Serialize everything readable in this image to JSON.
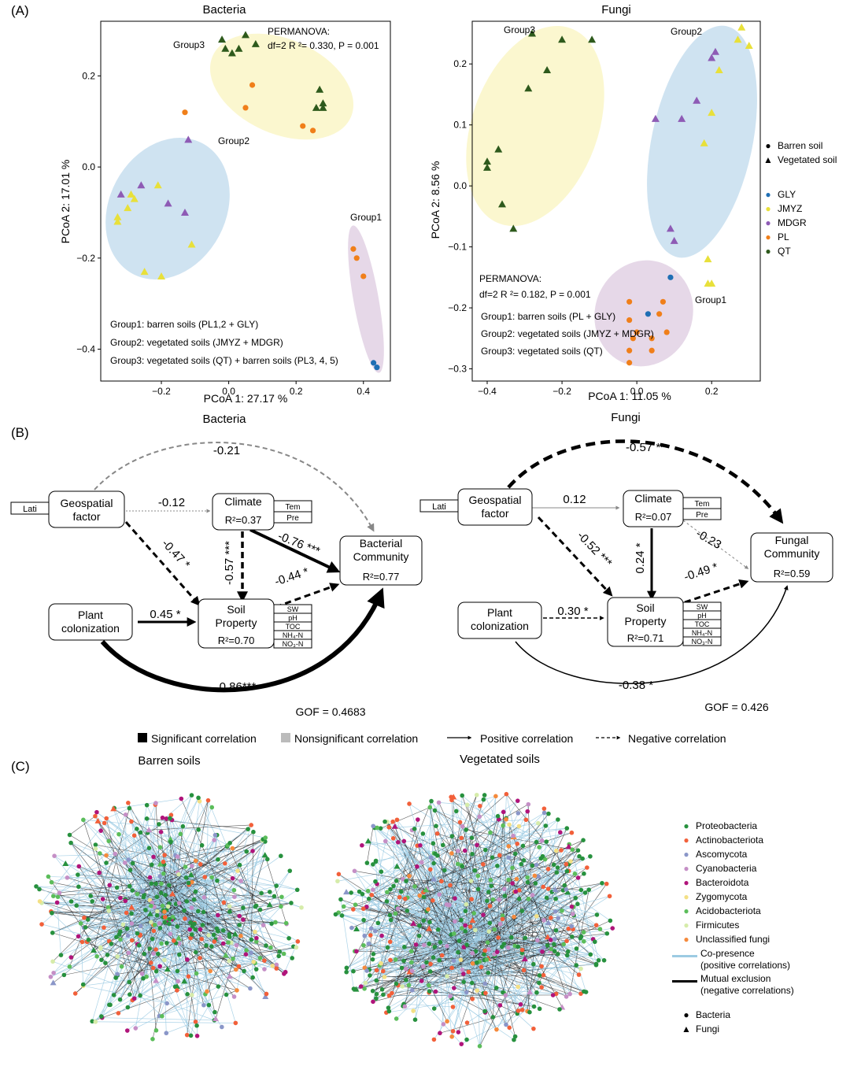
{
  "panel_a": {
    "label": "(A)",
    "bacteria": {
      "title": "Bacteria",
      "xlabel": "PCoA 1: 27.17 %",
      "ylabel": "PCoA 2: 17.01 %",
      "xticks": [
        "−0.2",
        "0.0",
        "0.2",
        "0.4"
      ],
      "yticks": [
        "0.2",
        "0.0",
        "−0.2",
        "−0.4"
      ],
      "permanova_title": "PERMANOVA:",
      "permanova_stats": "df=2 R ²= 0.330,  P = 0.001",
      "group_labels": [
        "Group1",
        "Group2",
        "Group3"
      ],
      "group_notes": [
        "Group1: barren soils (PL1,2 + GLY)",
        "Group2: vegetated soils (JMYZ + MDGR)",
        "Group3: vegetated soils (QT) + barren soils (PL3, 4, 5)"
      ]
    },
    "fungi": {
      "title": "Fungi",
      "xlabel": "PCoA 1: 11.05 %",
      "ylabel": "PCoA 2: 8.56 %",
      "xticks": [
        "−0.4",
        "−0.2",
        "0.0",
        "0.2"
      ],
      "yticks": [
        "0.2",
        "0.1",
        "0.0",
        "−0.1",
        "−0.2",
        "−0.3"
      ],
      "permanova_title": "PERMANOVA:",
      "permanova_stats": "df=2 R ²= 0.182,   P = 0.001",
      "group_labels": [
        "Group1",
        "Group2",
        "Group3"
      ],
      "group_notes": [
        "Group1: barren soils (PL + GLY)",
        "Group2: vegetated soils (JMYZ + MDGR)",
        "Group3: vegetated soils (QT)"
      ]
    },
    "shape_legend": [
      "Barren soil",
      "Vegetated soil"
    ],
    "site_legend": [
      {
        "name": "GLY",
        "color": "#1f6fb4"
      },
      {
        "name": "JMYZ",
        "color": "#e8e03a"
      },
      {
        "name": "MDGR",
        "color": "#8e5bb5"
      },
      {
        "name": "PL",
        "color": "#f07f1a"
      },
      {
        "name": "QT",
        "color": "#2e5a1c"
      }
    ]
  },
  "panel_b": {
    "label": "(B)",
    "bacteria": {
      "title": "Bacteria",
      "nodes": {
        "geo": "Geospatial\nfactor",
        "climate": "Climate",
        "climate_r2": "R²=0.37",
        "comm": "Bacterial\nCommunity",
        "comm_r2": "R²=0.77",
        "plant": "Plant\ncolonization",
        "soil": "Soil\nProperty",
        "soil_r2": "R²=0.70"
      },
      "coefs": [
        "-0.21",
        "-0.12",
        "-0.47 *",
        "-0.57 ***",
        "-0.76 ***",
        "-0.44 *",
        "0.45 *",
        "0.86***"
      ],
      "gof": "GOF = 0.4683"
    },
    "fungi": {
      "title": "Fungi",
      "nodes": {
        "geo": "Geospatial\nfactor",
        "climate": "Climate",
        "climate_r2": "R²=0.07",
        "comm": "Fungal\nCommunity",
        "comm_r2": "R²=0.59",
        "plant": "Plant\ncolonization",
        "soil": "Soil\nProperty",
        "soil_r2": "R²=0.71"
      },
      "coefs": [
        "-0.57 **",
        "0.12",
        "-0.52 ***",
        "0.24 *",
        "-0.23",
        "-0.49 *",
        "0.30 *",
        "-0.38 *"
      ],
      "gof": "GOF = 0.426"
    },
    "lati": "Lati",
    "climate_vars": [
      "Tem",
      "Pre"
    ],
    "soil_vars": [
      "SW",
      "pH",
      "TOC",
      "NH₄-N",
      "NO₃-N"
    ],
    "legend": [
      "Significant correlation",
      "Nonsignificant correlation",
      "Positive correlation",
      "Negative correlation"
    ]
  },
  "panel_c": {
    "label": "(C)",
    "titles": [
      "Barren soils",
      "Vegetated soils"
    ],
    "taxa": [
      {
        "name": "Proteobacteria",
        "color": "#27913e"
      },
      {
        "name": "Actinobacteriota",
        "color": "#f2603a"
      },
      {
        "name": "Ascomycota",
        "color": "#8a96c8"
      },
      {
        "name": "Cyanobacteria",
        "color": "#c58fc6"
      },
      {
        "name": "Bacteroidota",
        "color": "#b0147a"
      },
      {
        "name": "Zygomycota",
        "color": "#f3e085"
      },
      {
        "name": "Acidobacteriota",
        "color": "#5bbd5a"
      },
      {
        "name": "Firmicutes",
        "color": "#d6ecaa"
      },
      {
        "name": "Unclassified fungi",
        "color": "#f58a3c"
      }
    ],
    "edges": [
      {
        "name": "Co-presence",
        "sub": "(positive correlations)",
        "color": "#9ccbe3"
      },
      {
        "name": "Mutual exclusion",
        "sub": "(negative correlations)",
        "color": "#000000"
      }
    ],
    "shapes": [
      "Bacteria",
      "Fungi"
    ]
  },
  "chart_data": [
    {
      "type": "scatter",
      "title": "Bacteria",
      "xlabel": "PCoA 1: 27.17 %",
      "ylabel": "PCoA 2: 17.01 %",
      "xlim": [
        -0.38,
        0.48
      ],
      "ylim": [
        -0.47,
        0.32
      ],
      "points": [
        {
          "x": -0.02,
          "y": 0.28,
          "site": "QT",
          "shape": "tri"
        },
        {
          "x": 0.05,
          "y": 0.29,
          "site": "QT",
          "shape": "tri"
        },
        {
          "x": 0.08,
          "y": 0.27,
          "site": "QT",
          "shape": "tri"
        },
        {
          "x": -0.01,
          "y": 0.26,
          "site": "QT",
          "shape": "tri"
        },
        {
          "x": 0.01,
          "y": 0.25,
          "site": "QT",
          "shape": "tri"
        },
        {
          "x": 0.03,
          "y": 0.26,
          "site": "QT",
          "shape": "tri"
        },
        {
          "x": 0.27,
          "y": 0.17,
          "site": "QT",
          "shape": "tri"
        },
        {
          "x": 0.28,
          "y": 0.14,
          "site": "QT",
          "shape": "tri"
        },
        {
          "x": 0.28,
          "y": 0.13,
          "site": "QT",
          "shape": "tri"
        },
        {
          "x": 0.26,
          "y": 0.13,
          "site": "QT",
          "shape": "tri"
        },
        {
          "x": 0.07,
          "y": 0.18,
          "site": "PL",
          "shape": "dot"
        },
        {
          "x": 0.05,
          "y": 0.13,
          "site": "PL",
          "shape": "dot"
        },
        {
          "x": 0.22,
          "y": 0.09,
          "site": "PL",
          "shape": "dot"
        },
        {
          "x": 0.25,
          "y": 0.08,
          "site": "PL",
          "shape": "dot"
        },
        {
          "x": -0.13,
          "y": 0.12,
          "site": "PL",
          "shape": "dot"
        },
        {
          "x": -0.12,
          "y": 0.06,
          "site": "MDGR",
          "shape": "tri"
        },
        {
          "x": -0.32,
          "y": -0.06,
          "site": "MDGR",
          "shape": "tri"
        },
        {
          "x": -0.26,
          "y": -0.04,
          "site": "MDGR",
          "shape": "tri"
        },
        {
          "x": -0.18,
          "y": -0.08,
          "site": "MDGR",
          "shape": "tri"
        },
        {
          "x": -0.13,
          "y": -0.1,
          "site": "MDGR",
          "shape": "tri"
        },
        {
          "x": -0.33,
          "y": -0.11,
          "site": "JMYZ",
          "shape": "tri"
        },
        {
          "x": -0.33,
          "y": -0.12,
          "site": "JMYZ",
          "shape": "tri"
        },
        {
          "x": -0.3,
          "y": -0.09,
          "site": "JMYZ",
          "shape": "tri"
        },
        {
          "x": -0.28,
          "y": -0.07,
          "site": "JMYZ",
          "shape": "tri"
        },
        {
          "x": -0.21,
          "y": -0.04,
          "site": "JMYZ",
          "shape": "tri"
        },
        {
          "x": -0.29,
          "y": -0.06,
          "site": "JMYZ",
          "shape": "tri"
        },
        {
          "x": -0.11,
          "y": -0.17,
          "site": "JMYZ",
          "shape": "tri"
        },
        {
          "x": -0.25,
          "y": -0.23,
          "site": "JMYZ",
          "shape": "tri"
        },
        {
          "x": -0.2,
          "y": -0.24,
          "site": "JMYZ",
          "shape": "tri"
        },
        {
          "x": 0.37,
          "y": -0.18,
          "site": "PL",
          "shape": "dot"
        },
        {
          "x": 0.38,
          "y": -0.2,
          "site": "PL",
          "shape": "dot"
        },
        {
          "x": 0.4,
          "y": -0.24,
          "site": "PL",
          "shape": "dot"
        },
        {
          "x": 0.43,
          "y": -0.43,
          "site": "GLY",
          "shape": "dot"
        },
        {
          "x": 0.44,
          "y": -0.44,
          "site": "GLY",
          "shape": "dot"
        }
      ]
    },
    {
      "type": "scatter",
      "title": "Fungi",
      "xlabel": "PCoA 1: 11.05 %",
      "ylabel": "PCoA 2: 8.56 %",
      "xlim": [
        -0.44,
        0.33
      ],
      "ylim": [
        -0.32,
        0.27
      ],
      "points": [
        {
          "x": -0.28,
          "y": 0.25,
          "site": "QT",
          "shape": "tri"
        },
        {
          "x": -0.2,
          "y": 0.24,
          "site": "QT",
          "shape": "tri"
        },
        {
          "x": -0.12,
          "y": 0.24,
          "site": "QT",
          "shape": "tri"
        },
        {
          "x": -0.24,
          "y": 0.19,
          "site": "QT",
          "shape": "tri"
        },
        {
          "x": -0.29,
          "y": 0.16,
          "site": "QT",
          "shape": "tri"
        },
        {
          "x": -0.37,
          "y": 0.06,
          "site": "QT",
          "shape": "tri"
        },
        {
          "x": -0.4,
          "y": 0.04,
          "site": "QT",
          "shape": "tri"
        },
        {
          "x": -0.4,
          "y": 0.03,
          "site": "QT",
          "shape": "tri"
        },
        {
          "x": -0.36,
          "y": -0.03,
          "site": "QT",
          "shape": "tri"
        },
        {
          "x": -0.33,
          "y": -0.07,
          "site": "QT",
          "shape": "tri"
        },
        {
          "x": 0.28,
          "y": 0.26,
          "site": "JMYZ",
          "shape": "tri"
        },
        {
          "x": 0.27,
          "y": 0.24,
          "site": "JMYZ",
          "shape": "tri"
        },
        {
          "x": 0.3,
          "y": 0.23,
          "site": "JMYZ",
          "shape": "tri"
        },
        {
          "x": 0.22,
          "y": 0.19,
          "site": "JMYZ",
          "shape": "tri"
        },
        {
          "x": 0.2,
          "y": 0.12,
          "site": "JMYZ",
          "shape": "tri"
        },
        {
          "x": 0.18,
          "y": 0.07,
          "site": "JMYZ",
          "shape": "tri"
        },
        {
          "x": 0.19,
          "y": -0.12,
          "site": "JMYZ",
          "shape": "tri"
        },
        {
          "x": 0.19,
          "y": -0.16,
          "site": "JMYZ",
          "shape": "tri"
        },
        {
          "x": 0.2,
          "y": -0.16,
          "site": "JMYZ",
          "shape": "tri"
        },
        {
          "x": 0.21,
          "y": 0.22,
          "site": "MDGR",
          "shape": "tri"
        },
        {
          "x": 0.2,
          "y": 0.21,
          "site": "MDGR",
          "shape": "tri"
        },
        {
          "x": 0.16,
          "y": 0.14,
          "site": "MDGR",
          "shape": "tri"
        },
        {
          "x": 0.12,
          "y": 0.11,
          "site": "MDGR",
          "shape": "tri"
        },
        {
          "x": 0.05,
          "y": 0.11,
          "site": "MDGR",
          "shape": "tri"
        },
        {
          "x": 0.09,
          "y": -0.07,
          "site": "MDGR",
          "shape": "tri"
        },
        {
          "x": 0.1,
          "y": -0.09,
          "site": "MDGR",
          "shape": "tri"
        },
        {
          "x": 0.09,
          "y": -0.15,
          "site": "GLY",
          "shape": "dot"
        },
        {
          "x": 0.03,
          "y": -0.21,
          "site": "GLY",
          "shape": "dot"
        },
        {
          "x": -0.02,
          "y": -0.19,
          "site": "PL",
          "shape": "dot"
        },
        {
          "x": -0.02,
          "y": -0.22,
          "site": "PL",
          "shape": "dot"
        },
        {
          "x": 0.0,
          "y": -0.24,
          "site": "PL",
          "shape": "dot"
        },
        {
          "x": -0.01,
          "y": -0.25,
          "site": "PL",
          "shape": "dot"
        },
        {
          "x": 0.04,
          "y": -0.25,
          "site": "PL",
          "shape": "dot"
        },
        {
          "x": 0.06,
          "y": -0.21,
          "site": "PL",
          "shape": "dot"
        },
        {
          "x": 0.07,
          "y": -0.19,
          "site": "PL",
          "shape": "dot"
        },
        {
          "x": 0.08,
          "y": -0.24,
          "site": "PL",
          "shape": "dot"
        },
        {
          "x": -0.02,
          "y": -0.27,
          "site": "PL",
          "shape": "dot"
        },
        {
          "x": 0.04,
          "y": -0.27,
          "site": "PL",
          "shape": "dot"
        },
        {
          "x": -0.02,
          "y": -0.29,
          "site": "PL",
          "shape": "dot"
        }
      ]
    }
  ]
}
